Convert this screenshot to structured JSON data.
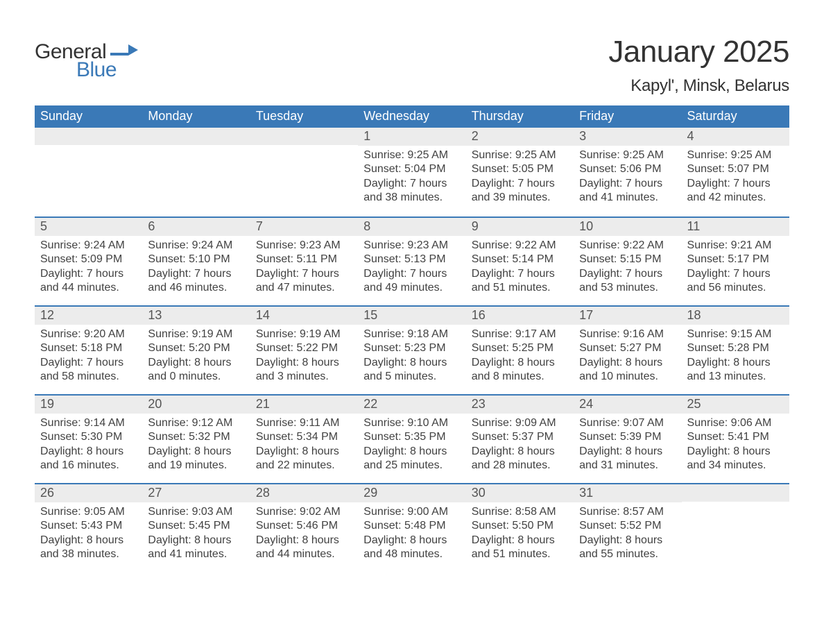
{
  "brand": {
    "text_general": "General",
    "text_blue": "Blue",
    "accent_color": "#3a79b7",
    "logo_shape_color": "#3a79b7"
  },
  "title": "January 2025",
  "location": "Kapyl', Minsk, Belarus",
  "colors": {
    "header_bg": "#3a79b7",
    "header_text": "#ffffff",
    "daynum_bg": "#ececec",
    "daynum_text": "#555555",
    "body_text": "#414141",
    "week_border": "#3a79b7",
    "page_bg": "#ffffff"
  },
  "typography": {
    "title_fontsize": 44,
    "location_fontsize": 24,
    "weekday_fontsize": 18,
    "daynum_fontsize": 18,
    "body_fontsize": 16,
    "font_family": "Arial"
  },
  "weekdays": [
    "Sunday",
    "Monday",
    "Tuesday",
    "Wednesday",
    "Thursday",
    "Friday",
    "Saturday"
  ],
  "weeks": [
    [
      {
        "num": "",
        "sunrise": "",
        "sunset": "",
        "daylight": ""
      },
      {
        "num": "",
        "sunrise": "",
        "sunset": "",
        "daylight": ""
      },
      {
        "num": "",
        "sunrise": "",
        "sunset": "",
        "daylight": ""
      },
      {
        "num": "1",
        "sunrise": "Sunrise: 9:25 AM",
        "sunset": "Sunset: 5:04 PM",
        "daylight": "Daylight: 7 hours and 38 minutes."
      },
      {
        "num": "2",
        "sunrise": "Sunrise: 9:25 AM",
        "sunset": "Sunset: 5:05 PM",
        "daylight": "Daylight: 7 hours and 39 minutes."
      },
      {
        "num": "3",
        "sunrise": "Sunrise: 9:25 AM",
        "sunset": "Sunset: 5:06 PM",
        "daylight": "Daylight: 7 hours and 41 minutes."
      },
      {
        "num": "4",
        "sunrise": "Sunrise: 9:25 AM",
        "sunset": "Sunset: 5:07 PM",
        "daylight": "Daylight: 7 hours and 42 minutes."
      }
    ],
    [
      {
        "num": "5",
        "sunrise": "Sunrise: 9:24 AM",
        "sunset": "Sunset: 5:09 PM",
        "daylight": "Daylight: 7 hours and 44 minutes."
      },
      {
        "num": "6",
        "sunrise": "Sunrise: 9:24 AM",
        "sunset": "Sunset: 5:10 PM",
        "daylight": "Daylight: 7 hours and 46 minutes."
      },
      {
        "num": "7",
        "sunrise": "Sunrise: 9:23 AM",
        "sunset": "Sunset: 5:11 PM",
        "daylight": "Daylight: 7 hours and 47 minutes."
      },
      {
        "num": "8",
        "sunrise": "Sunrise: 9:23 AM",
        "sunset": "Sunset: 5:13 PM",
        "daylight": "Daylight: 7 hours and 49 minutes."
      },
      {
        "num": "9",
        "sunrise": "Sunrise: 9:22 AM",
        "sunset": "Sunset: 5:14 PM",
        "daylight": "Daylight: 7 hours and 51 minutes."
      },
      {
        "num": "10",
        "sunrise": "Sunrise: 9:22 AM",
        "sunset": "Sunset: 5:15 PM",
        "daylight": "Daylight: 7 hours and 53 minutes."
      },
      {
        "num": "11",
        "sunrise": "Sunrise: 9:21 AM",
        "sunset": "Sunset: 5:17 PM",
        "daylight": "Daylight: 7 hours and 56 minutes."
      }
    ],
    [
      {
        "num": "12",
        "sunrise": "Sunrise: 9:20 AM",
        "sunset": "Sunset: 5:18 PM",
        "daylight": "Daylight: 7 hours and 58 minutes."
      },
      {
        "num": "13",
        "sunrise": "Sunrise: 9:19 AM",
        "sunset": "Sunset: 5:20 PM",
        "daylight": "Daylight: 8 hours and 0 minutes."
      },
      {
        "num": "14",
        "sunrise": "Sunrise: 9:19 AM",
        "sunset": "Sunset: 5:22 PM",
        "daylight": "Daylight: 8 hours and 3 minutes."
      },
      {
        "num": "15",
        "sunrise": "Sunrise: 9:18 AM",
        "sunset": "Sunset: 5:23 PM",
        "daylight": "Daylight: 8 hours and 5 minutes."
      },
      {
        "num": "16",
        "sunrise": "Sunrise: 9:17 AM",
        "sunset": "Sunset: 5:25 PM",
        "daylight": "Daylight: 8 hours and 8 minutes."
      },
      {
        "num": "17",
        "sunrise": "Sunrise: 9:16 AM",
        "sunset": "Sunset: 5:27 PM",
        "daylight": "Daylight: 8 hours and 10 minutes."
      },
      {
        "num": "18",
        "sunrise": "Sunrise: 9:15 AM",
        "sunset": "Sunset: 5:28 PM",
        "daylight": "Daylight: 8 hours and 13 minutes."
      }
    ],
    [
      {
        "num": "19",
        "sunrise": "Sunrise: 9:14 AM",
        "sunset": "Sunset: 5:30 PM",
        "daylight": "Daylight: 8 hours and 16 minutes."
      },
      {
        "num": "20",
        "sunrise": "Sunrise: 9:12 AM",
        "sunset": "Sunset: 5:32 PM",
        "daylight": "Daylight: 8 hours and 19 minutes."
      },
      {
        "num": "21",
        "sunrise": "Sunrise: 9:11 AM",
        "sunset": "Sunset: 5:34 PM",
        "daylight": "Daylight: 8 hours and 22 minutes."
      },
      {
        "num": "22",
        "sunrise": "Sunrise: 9:10 AM",
        "sunset": "Sunset: 5:35 PM",
        "daylight": "Daylight: 8 hours and 25 minutes."
      },
      {
        "num": "23",
        "sunrise": "Sunrise: 9:09 AM",
        "sunset": "Sunset: 5:37 PM",
        "daylight": "Daylight: 8 hours and 28 minutes."
      },
      {
        "num": "24",
        "sunrise": "Sunrise: 9:07 AM",
        "sunset": "Sunset: 5:39 PM",
        "daylight": "Daylight: 8 hours and 31 minutes."
      },
      {
        "num": "25",
        "sunrise": "Sunrise: 9:06 AM",
        "sunset": "Sunset: 5:41 PM",
        "daylight": "Daylight: 8 hours and 34 minutes."
      }
    ],
    [
      {
        "num": "26",
        "sunrise": "Sunrise: 9:05 AM",
        "sunset": "Sunset: 5:43 PM",
        "daylight": "Daylight: 8 hours and 38 minutes."
      },
      {
        "num": "27",
        "sunrise": "Sunrise: 9:03 AM",
        "sunset": "Sunset: 5:45 PM",
        "daylight": "Daylight: 8 hours and 41 minutes."
      },
      {
        "num": "28",
        "sunrise": "Sunrise: 9:02 AM",
        "sunset": "Sunset: 5:46 PM",
        "daylight": "Daylight: 8 hours and 44 minutes."
      },
      {
        "num": "29",
        "sunrise": "Sunrise: 9:00 AM",
        "sunset": "Sunset: 5:48 PM",
        "daylight": "Daylight: 8 hours and 48 minutes."
      },
      {
        "num": "30",
        "sunrise": "Sunrise: 8:58 AM",
        "sunset": "Sunset: 5:50 PM",
        "daylight": "Daylight: 8 hours and 51 minutes."
      },
      {
        "num": "31",
        "sunrise": "Sunrise: 8:57 AM",
        "sunset": "Sunset: 5:52 PM",
        "daylight": "Daylight: 8 hours and 55 minutes."
      },
      {
        "num": "",
        "sunrise": "",
        "sunset": "",
        "daylight": ""
      }
    ]
  ]
}
